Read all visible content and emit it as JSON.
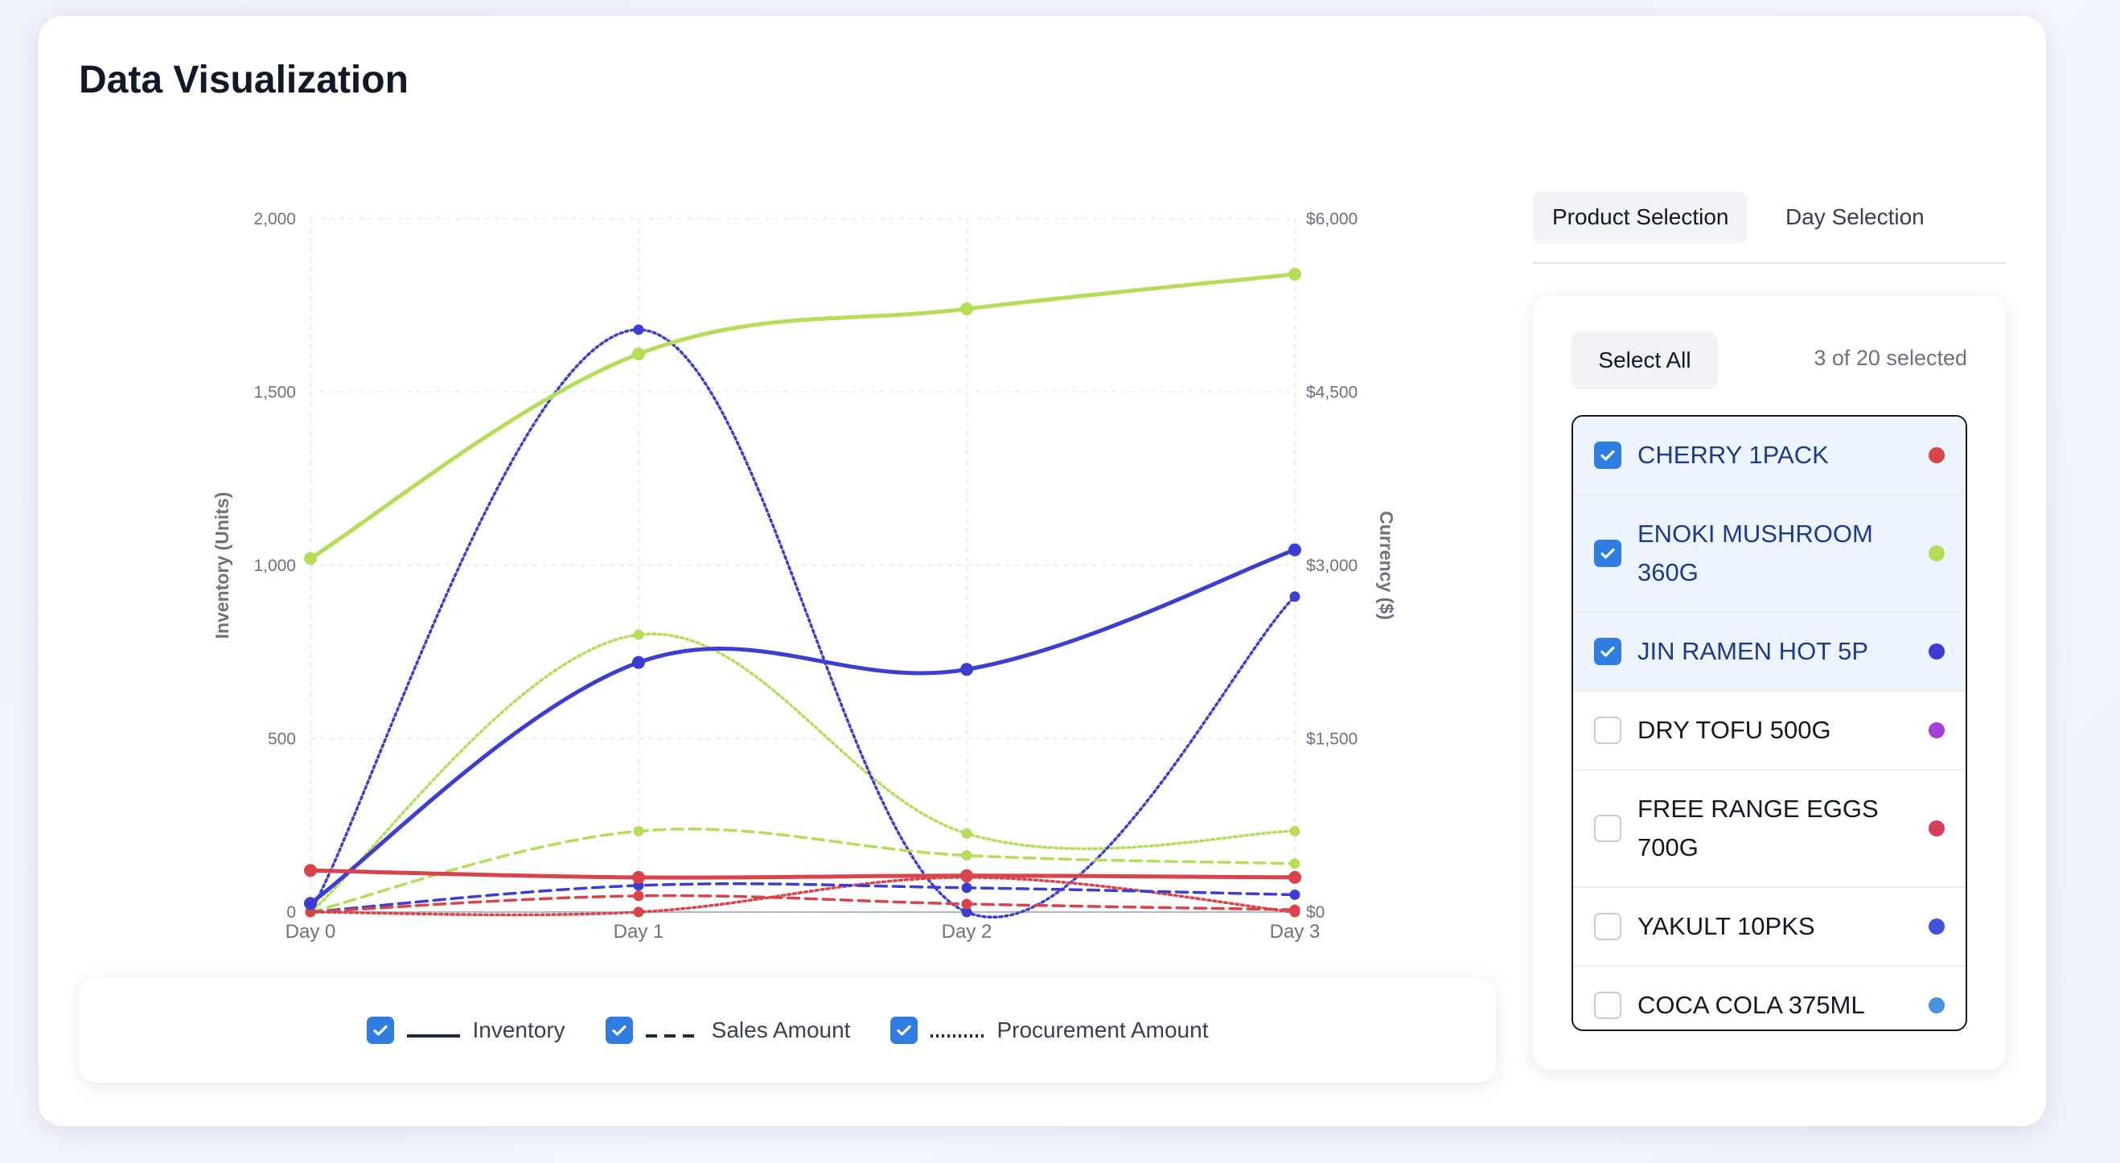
{
  "page": {
    "title": "Data Visualization"
  },
  "legend": [
    {
      "label": "Inventory",
      "style": "solid",
      "checked": true
    },
    {
      "label": "Sales Amount",
      "style": "dashed",
      "checked": true
    },
    {
      "label": "Procurement Amount",
      "style": "dotted",
      "checked": true
    }
  ],
  "tabs": {
    "product": "Product Selection",
    "day": "Day Selection"
  },
  "panel": {
    "select_all": "Select All",
    "selected_count": "3 of 20 selected",
    "products": [
      {
        "name": "CHERRY 1PACK",
        "checked": true,
        "color": "#d9434a"
      },
      {
        "name": "ENOKI MUSHROOM 360G",
        "checked": true,
        "color": "#b5de58"
      },
      {
        "name": "JIN RAMEN HOT 5P",
        "checked": true,
        "color": "#3c3dd1"
      },
      {
        "name": "DRY TOFU 500G",
        "checked": false,
        "color": "#a43fd6"
      },
      {
        "name": "FREE RANGE EGGS 700G",
        "checked": false,
        "color": "#d43f5a"
      },
      {
        "name": "YAKULT 10PKS",
        "checked": false,
        "color": "#3f53d6"
      },
      {
        "name": "COCA COLA 375ML",
        "checked": false,
        "color": "#4a90e2"
      }
    ]
  },
  "chart_data": {
    "type": "line",
    "categories": [
      "Day 0",
      "Day 1",
      "Day 2",
      "Day 3"
    ],
    "y_left": {
      "label": "Inventory (Units)",
      "range": [
        0,
        2000
      ],
      "ticks": [
        "0",
        "500",
        "1,000",
        "1,500",
        "2,000"
      ]
    },
    "y_right": {
      "label": "Currency ($)",
      "range": [
        0,
        6000
      ],
      "ticks": [
        "$0",
        "$1,500",
        "$3,000",
        "$4,500",
        "$6,000"
      ]
    },
    "grid": true,
    "series": [
      {
        "product": "ENOKI MUSHROOM 360G",
        "metric": "Inventory",
        "axis": "left",
        "color": "#b5de58",
        "style": "solid",
        "values": [
          1020,
          1610,
          1740,
          1840
        ]
      },
      {
        "product": "JIN RAMEN HOT 5P",
        "metric": "Inventory",
        "axis": "left",
        "color": "#3c3dd1",
        "style": "solid",
        "values": [
          25,
          720,
          700,
          1045
        ]
      },
      {
        "product": "CHERRY 1PACK",
        "metric": "Inventory",
        "axis": "left",
        "color": "#d9434a",
        "style": "solid",
        "values": [
          120,
          100,
          105,
          100
        ]
      },
      {
        "product": "ENOKI MUSHROOM 360G",
        "metric": "Sales Amount",
        "axis": "right",
        "color": "#b5de58",
        "style": "dashed",
        "values": [
          0,
          700,
          490,
          420
        ]
      },
      {
        "product": "JIN RAMEN HOT 5P",
        "metric": "Sales Amount",
        "axis": "right",
        "color": "#3c3dd1",
        "style": "dashed",
        "values": [
          0,
          230,
          210,
          150
        ]
      },
      {
        "product": "CHERRY 1PACK",
        "metric": "Sales Amount",
        "axis": "right",
        "color": "#d9434a",
        "style": "dashed",
        "values": [
          0,
          140,
          70,
          20
        ]
      },
      {
        "product": "ENOKI MUSHROOM 360G",
        "metric": "Procurement Amount",
        "axis": "right",
        "color": "#b5de58",
        "style": "dotted",
        "values": [
          0,
          2400,
          680,
          700
        ]
      },
      {
        "product": "JIN RAMEN HOT 5P",
        "metric": "Procurement Amount",
        "axis": "right",
        "color": "#3c3dd1",
        "style": "dotted",
        "values": [
          0,
          5040,
          0,
          2730
        ]
      },
      {
        "product": "CHERRY 1PACK",
        "metric": "Procurement Amount",
        "axis": "right",
        "color": "#d9434a",
        "style": "dotted",
        "values": [
          0,
          0,
          300,
          0
        ]
      }
    ]
  }
}
